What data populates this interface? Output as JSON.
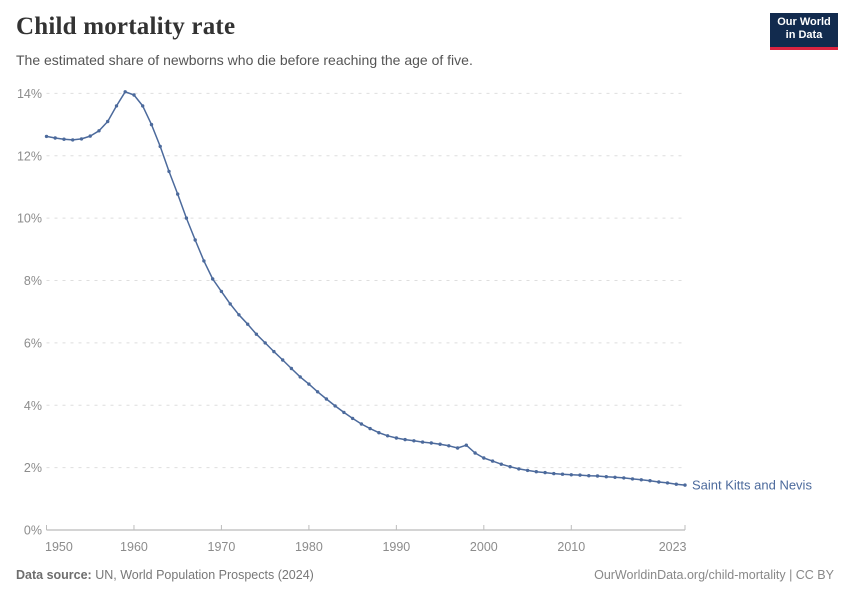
{
  "header": {
    "title": "Child mortality rate",
    "subtitle": "The estimated share of newborns who die before reaching the age of five.",
    "logo": {
      "line1": "Our World",
      "line2": "in Data"
    }
  },
  "footer": {
    "source_label": "Data source:",
    "source_text": " UN, World Population Prospects (2024)",
    "link_text": "OurWorldinData.org/child-mortality | CC BY"
  },
  "colors": {
    "line": "#4c6a9c",
    "series_label": "#4c6a9c",
    "grid": "#dedede",
    "axis": "#a8a8a8",
    "tick": "#bdbdbd",
    "tick_label": "#8c8c8c",
    "logo_bg": "#122b4e",
    "logo_red": "#dc2440"
  },
  "chart_data": {
    "type": "line",
    "title": "Child mortality rate",
    "xlabel": "",
    "ylabel": "",
    "unit": "%",
    "xlim": [
      1950,
      2023
    ],
    "ylim": [
      0,
      14
    ],
    "x_ticks": [
      1950,
      1960,
      1970,
      1980,
      1990,
      2000,
      2010,
      2023
    ],
    "y_ticks": [
      0,
      2,
      4,
      6,
      8,
      10,
      12,
      14
    ],
    "grid": "horizontal-dashed",
    "legend_position": "end-of-line-label",
    "series": [
      {
        "name": "Saint Kitts and Nevis",
        "x": [
          1950,
          1951,
          1952,
          1953,
          1954,
          1955,
          1956,
          1957,
          1958,
          1959,
          1960,
          1961,
          1962,
          1963,
          1964,
          1965,
          1966,
          1967,
          1968,
          1969,
          1970,
          1971,
          1972,
          1973,
          1974,
          1975,
          1976,
          1977,
          1978,
          1979,
          1980,
          1981,
          1982,
          1983,
          1984,
          1985,
          1986,
          1987,
          1988,
          1989,
          1990,
          1991,
          1992,
          1993,
          1994,
          1995,
          1996,
          1997,
          1998,
          1999,
          2000,
          2001,
          2002,
          2003,
          2004,
          2005,
          2006,
          2007,
          2008,
          2009,
          2010,
          2011,
          2012,
          2013,
          2014,
          2015,
          2016,
          2017,
          2018,
          2019,
          2020,
          2021,
          2022,
          2023
        ],
        "values": [
          12.62,
          12.57,
          12.53,
          12.51,
          12.54,
          12.63,
          12.8,
          13.1,
          13.6,
          14.05,
          13.95,
          13.6,
          13.0,
          12.3,
          11.5,
          10.77,
          10.0,
          9.3,
          8.63,
          8.05,
          7.65,
          7.25,
          6.9,
          6.6,
          6.28,
          6.0,
          5.72,
          5.45,
          5.18,
          4.91,
          4.68,
          4.43,
          4.2,
          3.98,
          3.77,
          3.58,
          3.4,
          3.25,
          3.12,
          3.02,
          2.95,
          2.9,
          2.86,
          2.82,
          2.79,
          2.75,
          2.7,
          2.63,
          2.72,
          2.47,
          2.31,
          2.21,
          2.11,
          2.03,
          1.96,
          1.91,
          1.87,
          1.84,
          1.81,
          1.79,
          1.77,
          1.76,
          1.74,
          1.73,
          1.71,
          1.69,
          1.67,
          1.64,
          1.61,
          1.58,
          1.54,
          1.51,
          1.47,
          1.44
        ]
      }
    ]
  }
}
